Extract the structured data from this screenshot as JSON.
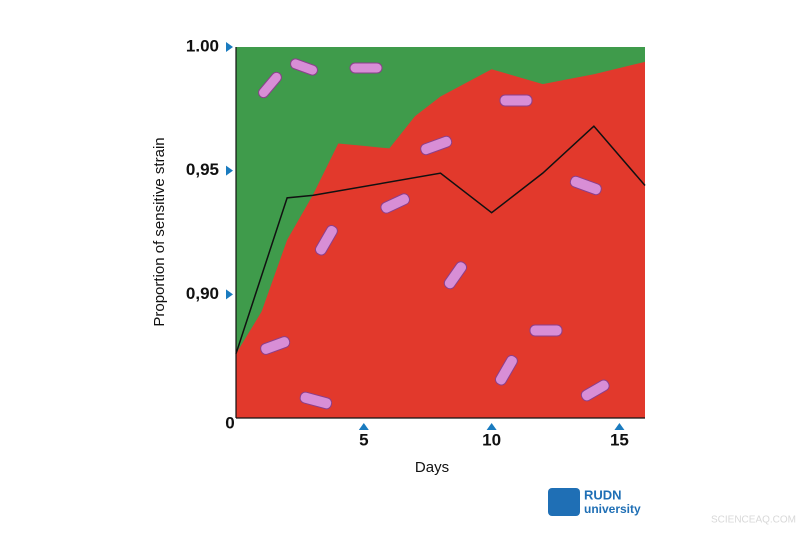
{
  "chart_data": {
    "type": "area",
    "y_label": "Proportion of sensitive strain",
    "x_label": "Days",
    "xlim": [
      0,
      16
    ],
    "ylim": [
      0.85,
      1.0
    ],
    "xticks": [
      0,
      5,
      10,
      15
    ],
    "yticks": [
      {
        "value": 0.9,
        "label": "0,90"
      },
      {
        "value": 0.95,
        "label": "0,95"
      },
      {
        "value": 1.0,
        "label": "1.00"
      }
    ],
    "background_color": "#3f9b4b",
    "series": [
      {
        "type": "area",
        "color": "#e2392c",
        "x": [
          0,
          1,
          2,
          3,
          4,
          5,
          6,
          7,
          8,
          10,
          12,
          13,
          14,
          16
        ],
        "values": [
          0.876,
          0.893,
          0.922,
          0.94,
          0.961,
          0.96,
          0.959,
          0.972,
          0.98,
          0.991,
          0.985,
          0.987,
          0.989,
          0.994
        ]
      },
      {
        "type": "line",
        "color": "#111111",
        "x": [
          0,
          2,
          3,
          8,
          10,
          12,
          14,
          16
        ],
        "values": [
          0.876,
          0.939,
          0.94,
          0.949,
          0.933,
          0.949,
          0.968,
          0.944
        ]
      }
    ]
  },
  "logo": {
    "name": "RUDN",
    "subtitle": "university"
  },
  "watermark": "SCIENCEAQ.COM"
}
